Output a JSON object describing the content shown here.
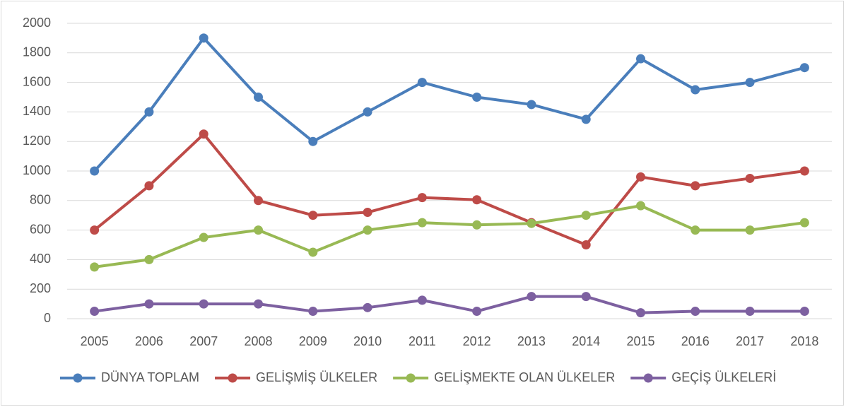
{
  "chart_data": {
    "type": "line",
    "categories": [
      "2005",
      "2006",
      "2007",
      "2008",
      "2009",
      "2010",
      "2011",
      "2012",
      "2013",
      "2014",
      "2015",
      "2016",
      "2017",
      "2018"
    ],
    "series": [
      {
        "name": "DÜNYA TOPLAM",
        "color": "#4a7ebb",
        "values": [
          1000,
          1400,
          1900,
          1500,
          1200,
          1400,
          1600,
          1500,
          1450,
          1350,
          1760,
          1550,
          1600,
          1700
        ]
      },
      {
        "name": "GELİŞMİŞ ÜLKELER",
        "color": "#be4b48",
        "values": [
          600,
          900,
          1250,
          800,
          700,
          720,
          820,
          805,
          650,
          500,
          960,
          900,
          950,
          1000
        ]
      },
      {
        "name": "GELİŞMEKTE OLAN ÜLKELER",
        "color": "#98b954",
        "values": [
          350,
          400,
          550,
          600,
          450,
          600,
          650,
          635,
          645,
          700,
          765,
          600,
          600,
          650
        ]
      },
      {
        "name": "GEÇİŞ ÜLKELERİ",
        "color": "#7d60a0",
        "values": [
          50,
          100,
          100,
          100,
          50,
          75,
          125,
          50,
          150,
          150,
          40,
          50,
          50,
          50
        ]
      }
    ],
    "ylim": [
      0,
      2000
    ],
    "yticks": [
      0,
      200,
      400,
      600,
      800,
      1000,
      1200,
      1400,
      1600,
      1800,
      2000
    ],
    "grid": true,
    "legend": "bottom"
  }
}
